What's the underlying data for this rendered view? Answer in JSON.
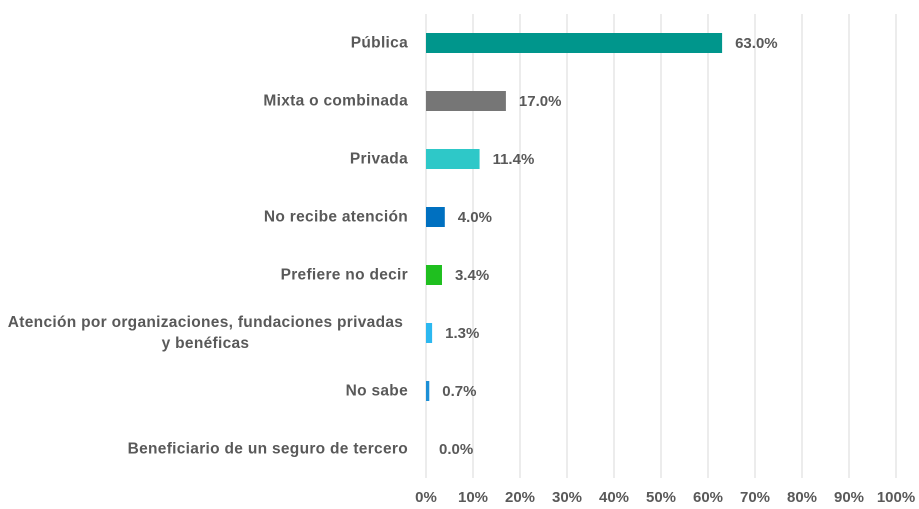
{
  "chart_data": {
    "type": "bar",
    "orientation": "horizontal",
    "categories": [
      "Pública",
      "Mixta o combinada",
      "Privada",
      "No recibe atención",
      "Prefiere no decir",
      "Atención por organizaciones, fundaciones privadas y benéficas",
      "No sabe",
      "Beneficiario de un seguro de tercero"
    ],
    "values": [
      63.0,
      17.0,
      11.4,
      4.0,
      3.4,
      1.3,
      0.7,
      0.0
    ],
    "value_labels": [
      "63.0%",
      "17.0%",
      "11.4%",
      "4.0%",
      "3.4%",
      "1.3%",
      "0.7%",
      "0.0%"
    ],
    "colors": [
      "#00968c",
      "#767676",
      "#2ec8c8",
      "#0070c0",
      "#1fbf1f",
      "#2cb8f0",
      "#1c8fd6",
      "#7f7f7f"
    ],
    "xlim": [
      0,
      100
    ],
    "xticks": [
      {
        "value": 0,
        "label": "0%"
      },
      {
        "value": 10,
        "label": "10%"
      },
      {
        "value": 20,
        "label": "20%"
      },
      {
        "value": 30,
        "label": "30%"
      },
      {
        "value": 40,
        "label": "40%"
      },
      {
        "value": 50,
        "label": "50%"
      },
      {
        "value": 60,
        "label": "60%"
      },
      {
        "value": 70,
        "label": "70%"
      },
      {
        "value": 80,
        "label": "80%"
      },
      {
        "value": 90,
        "label": "90%"
      },
      {
        "value": 100,
        "label": "100%"
      }
    ],
    "grid": true
  }
}
